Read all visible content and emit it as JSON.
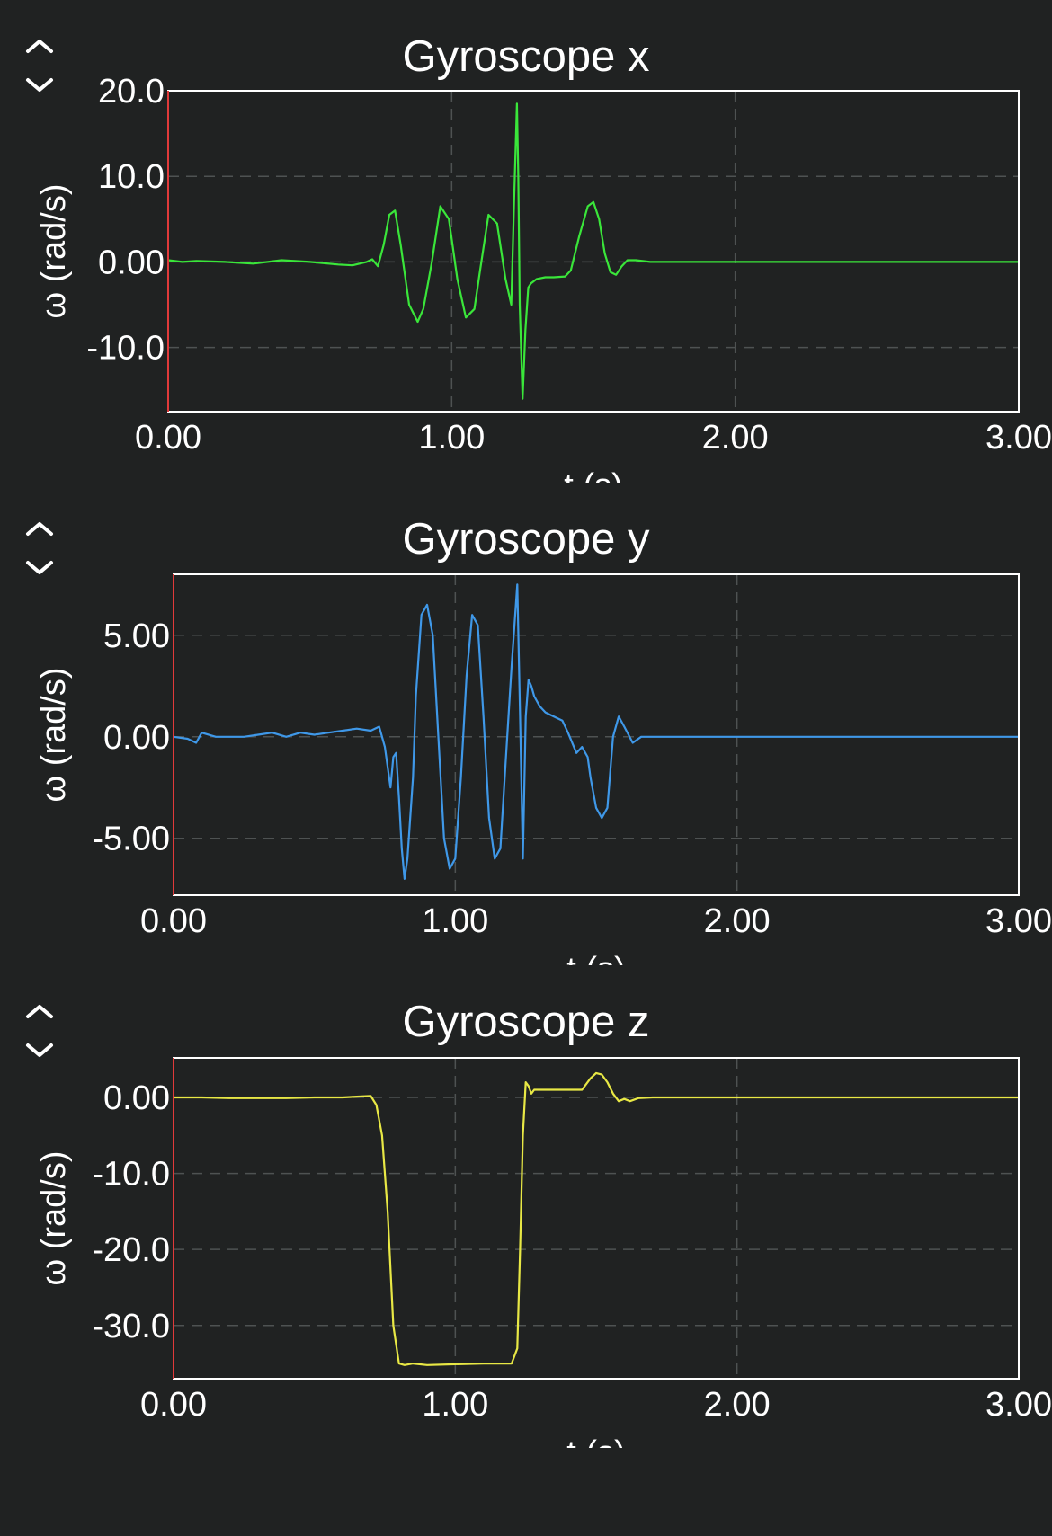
{
  "chart_data": [
    {
      "type": "line",
      "title": "Gyroscope x",
      "xlabel": "t (s)",
      "ylabel": "ω (rad/s)",
      "xlim": [
        0,
        3
      ],
      "ylim": [
        -17.5,
        20.0
      ],
      "xticks": [
        "0.00",
        "1.00",
        "2.00",
        "3.00"
      ],
      "xtick_values": [
        0,
        1,
        2,
        3
      ],
      "yticks": [
        "20.0",
        "10.0",
        "0.00",
        "-10.0"
      ],
      "ytick_values": [
        20,
        10,
        0,
        -10
      ],
      "grid": true,
      "series": [
        {
          "color": "#3ae63a",
          "x": [
            0,
            0.05,
            0.1,
            0.2,
            0.3,
            0.4,
            0.5,
            0.6,
            0.65,
            0.7,
            0.72,
            0.74,
            0.76,
            0.78,
            0.8,
            0.82,
            0.85,
            0.88,
            0.9,
            0.93,
            0.96,
            0.99,
            1.02,
            1.05,
            1.08,
            1.1,
            1.13,
            1.16,
            1.19,
            1.21,
            1.22,
            1.23,
            1.235,
            1.24,
            1.25,
            1.26,
            1.27,
            1.28,
            1.3,
            1.33,
            1.36,
            1.4,
            1.42,
            1.45,
            1.48,
            1.5,
            1.52,
            1.54,
            1.56,
            1.58,
            1.6,
            1.62,
            1.65,
            1.7,
            1.8,
            2.0,
            2.5,
            3.0
          ],
          "y": [
            0.2,
            0,
            0.1,
            0,
            -0.2,
            0.2,
            0,
            -0.3,
            -0.4,
            0,
            0.3,
            -0.5,
            2,
            5.5,
            6.0,
            2,
            -5,
            -7,
            -5.5,
            0,
            6.5,
            5,
            -2,
            -6.5,
            -5.5,
            -1,
            5.5,
            4.5,
            -2,
            -5,
            7,
            18.5,
            10,
            -5,
            -16,
            -8,
            -3,
            -2.5,
            -2,
            -1.8,
            -1.8,
            -1.7,
            -1,
            3,
            6.5,
            7,
            5,
            1,
            -1.2,
            -1.5,
            -0.5,
            0.2,
            0.2,
            0,
            0,
            0,
            0,
            0
          ]
        }
      ]
    },
    {
      "type": "line",
      "title": "Gyroscope y",
      "xlabel": "t (s)",
      "ylabel": "ω (rad/s)",
      "xlim": [
        0,
        3
      ],
      "ylim": [
        -7.8,
        8.0
      ],
      "xticks": [
        "0.00",
        "1.00",
        "2.00",
        "3.00"
      ],
      "xtick_values": [
        0,
        1,
        2,
        3
      ],
      "yticks": [
        "5.00",
        "0.00",
        "-5.00"
      ],
      "ytick_values": [
        5,
        0,
        -5
      ],
      "grid": true,
      "series": [
        {
          "color": "#3f98e8",
          "x": [
            0,
            0.05,
            0.08,
            0.1,
            0.15,
            0.2,
            0.25,
            0.3,
            0.35,
            0.4,
            0.45,
            0.5,
            0.55,
            0.6,
            0.65,
            0.7,
            0.73,
            0.75,
            0.77,
            0.78,
            0.79,
            0.8,
            0.81,
            0.82,
            0.83,
            0.85,
            0.86,
            0.88,
            0.9,
            0.92,
            0.94,
            0.96,
            0.98,
            1.0,
            1.02,
            1.04,
            1.06,
            1.08,
            1.1,
            1.12,
            1.14,
            1.16,
            1.18,
            1.2,
            1.22,
            1.23,
            1.24,
            1.25,
            1.26,
            1.27,
            1.28,
            1.3,
            1.32,
            1.35,
            1.38,
            1.4,
            1.43,
            1.45,
            1.47,
            1.48,
            1.5,
            1.52,
            1.54,
            1.56,
            1.58,
            1.6,
            1.63,
            1.66,
            1.68,
            1.7,
            1.8,
            2.0,
            2.5,
            3.0
          ],
          "y": [
            0,
            -0.1,
            -0.3,
            0.2,
            0,
            0,
            0,
            0.1,
            0.2,
            0,
            0.2,
            0.1,
            0.2,
            0.3,
            0.4,
            0.3,
            0.5,
            -0.5,
            -2.5,
            -1,
            -0.8,
            -3,
            -5.5,
            -7,
            -6,
            -2,
            2,
            6,
            6.5,
            5,
            0,
            -5,
            -6.5,
            -6,
            -2,
            3,
            6,
            5.5,
            1,
            -4,
            -6,
            -5.5,
            -1,
            3.5,
            7.5,
            1,
            -6,
            1,
            2.8,
            2.5,
            2,
            1.5,
            1.2,
            1,
            0.8,
            0.2,
            -0.8,
            -0.5,
            -1,
            -2,
            -3.5,
            -4,
            -3.5,
            0,
            1,
            0.5,
            -0.3,
            0,
            0,
            0,
            0,
            0,
            0,
            0
          ]
        }
      ]
    },
    {
      "type": "line",
      "title": "Gyroscope z",
      "xlabel": "t (s)",
      "ylabel": "ω (rad/s)",
      "xlim": [
        0,
        3
      ],
      "ylim": [
        -37.0,
        5.2
      ],
      "xticks": [
        "0.00",
        "1.00",
        "2.00",
        "3.00"
      ],
      "xtick_values": [
        0,
        1,
        2,
        3
      ],
      "yticks": [
        "0.00",
        "-10.0",
        "-20.0",
        "-30.0"
      ],
      "ytick_values": [
        0,
        -10,
        -20,
        -30
      ],
      "grid": true,
      "series": [
        {
          "color": "#e8e845",
          "x": [
            0,
            0.1,
            0.2,
            0.3,
            0.4,
            0.5,
            0.6,
            0.65,
            0.7,
            0.72,
            0.74,
            0.76,
            0.78,
            0.8,
            0.82,
            0.85,
            0.9,
            1.0,
            1.1,
            1.2,
            1.22,
            1.23,
            1.24,
            1.25,
            1.26,
            1.27,
            1.28,
            1.3,
            1.35,
            1.4,
            1.45,
            1.48,
            1.5,
            1.52,
            1.54,
            1.56,
            1.58,
            1.6,
            1.62,
            1.65,
            1.7,
            1.8,
            2.0,
            2.5,
            3.0
          ],
          "y": [
            0,
            0,
            -0.1,
            -0.1,
            -0.1,
            0,
            0,
            0.1,
            0.2,
            -1,
            -5,
            -15,
            -30,
            -35,
            -35.2,
            -35,
            -35.2,
            -35.1,
            -35,
            -35,
            -33,
            -20,
            -5,
            2,
            1.5,
            0.5,
            1,
            1,
            1,
            1,
            1,
            2.5,
            3.2,
            3,
            2,
            0.5,
            -0.5,
            -0.2,
            -0.5,
            -0.1,
            0,
            0,
            0,
            0,
            0
          ]
        }
      ]
    }
  ]
}
